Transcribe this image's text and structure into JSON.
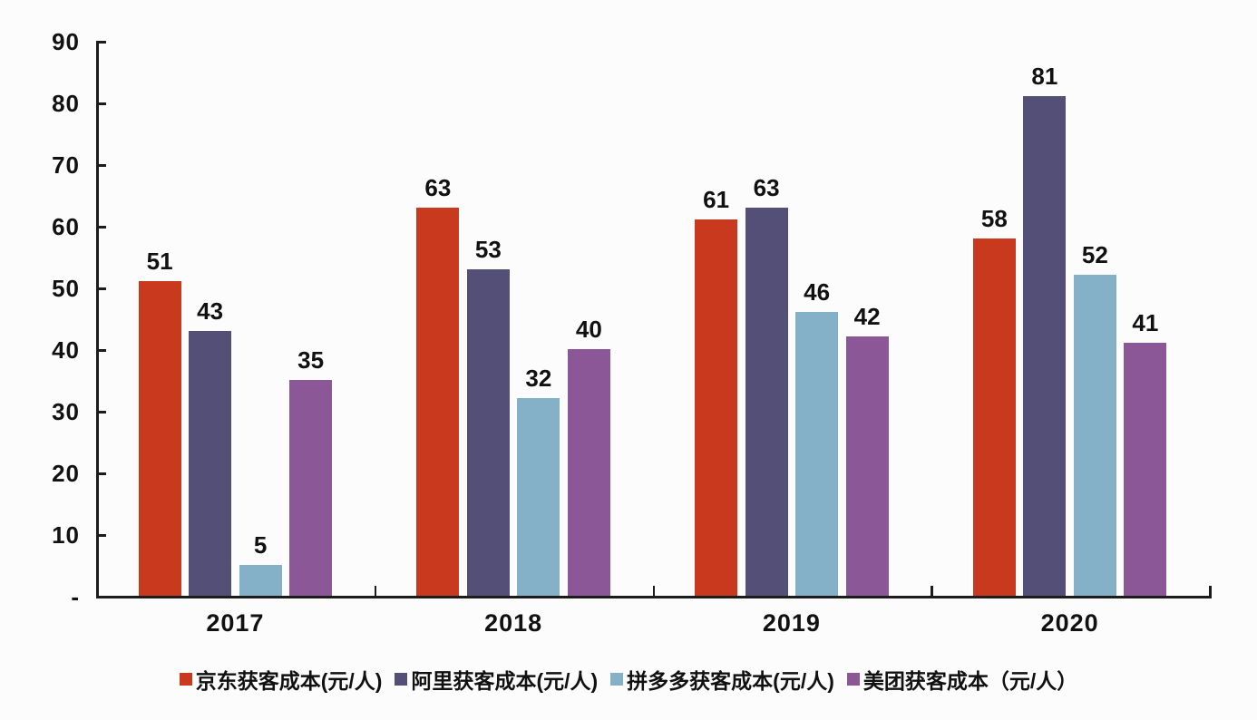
{
  "chart_data": {
    "type": "bar",
    "title": "",
    "xlabel": "",
    "ylabel": "",
    "categories": [
      "2017",
      "2018",
      "2019",
      "2020"
    ],
    "series": [
      {
        "name": "京东获客成本(元/人)",
        "color": "#C8391D",
        "values": [
          51,
          63,
          61,
          58
        ]
      },
      {
        "name": "阿里获客成本(元/人)",
        "color": "#544F76",
        "values": [
          43,
          53,
          63,
          81
        ]
      },
      {
        "name": "拼多多获客成本(元/人)",
        "color": "#84B1C8",
        "values": [
          5,
          32,
          46,
          52
        ]
      },
      {
        "name": "美团获客成本（元/人）",
        "color": "#8C5796",
        "values": [
          35,
          40,
          42,
          41
        ]
      }
    ],
    "ylim": [
      0,
      90
    ],
    "ytick_step": 10,
    "ytick_labels_top_down": [
      "90",
      "80",
      "70",
      "60",
      "50",
      "40",
      "30",
      "20",
      "10",
      "-"
    ],
    "grid": false,
    "legend_position": "bottom",
    "axis_color": "#1c1c1c",
    "data_labels_shown": true
  }
}
